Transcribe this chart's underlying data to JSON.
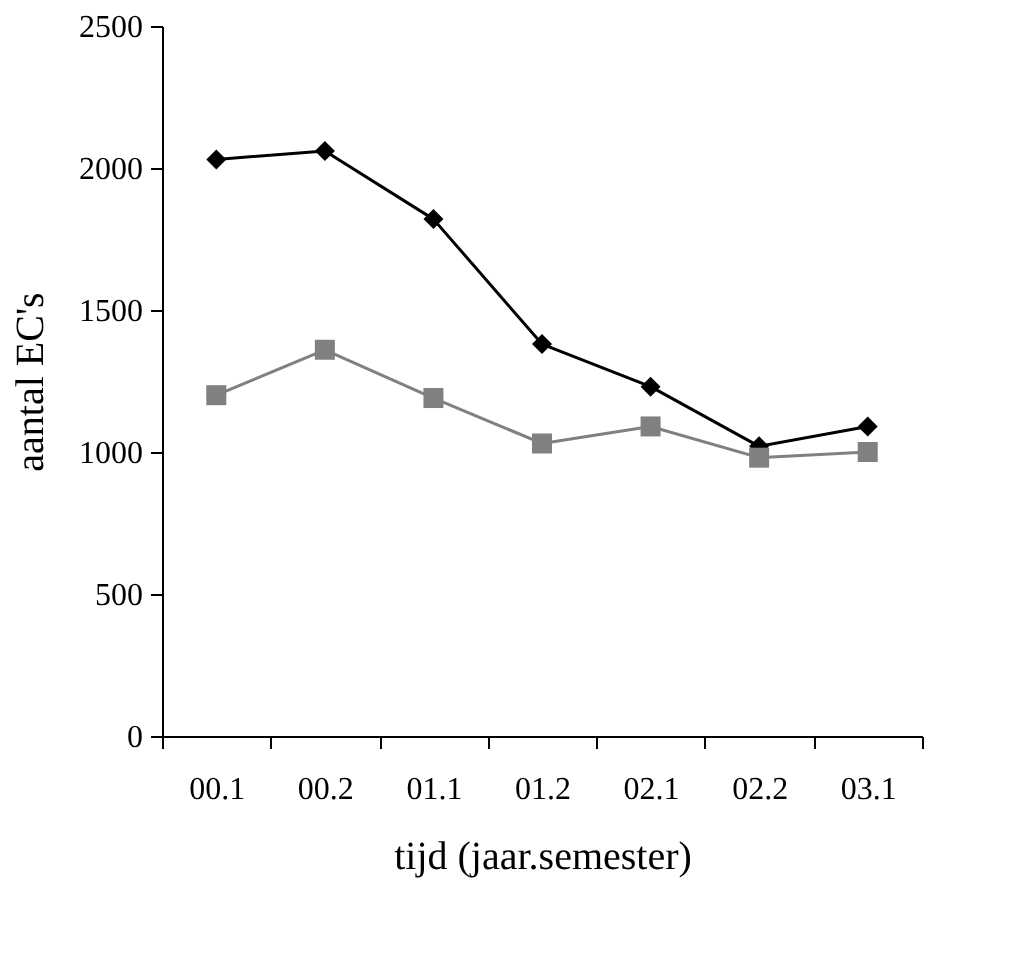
{
  "chart_data": {
    "type": "line",
    "xlabel": "tijd (jaar.semester)",
    "ylabel": "aantal EC's",
    "categories": [
      "00.1",
      "00.2",
      "01.1",
      "01.2",
      "02.1",
      "02.2",
      "03.1"
    ],
    "series": [
      {
        "color": "#000000",
        "marker": "diamond",
        "values": [
          2030,
          2060,
          1820,
          1380,
          1230,
          1020,
          1090
        ]
      },
      {
        "color": "#808080",
        "marker": "square",
        "values": [
          1200,
          1360,
          1190,
          1030,
          1090,
          980,
          1000
        ]
      }
    ],
    "ylim": [
      0,
      2500
    ],
    "yticks": [
      0,
      500,
      1000,
      1500,
      2000,
      2500
    ],
    "line_style": "solid"
  }
}
